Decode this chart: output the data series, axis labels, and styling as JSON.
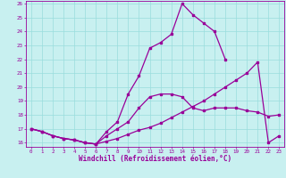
{
  "xlabel": "Windchill (Refroidissement éolien,°C)",
  "background_color": "#c8f0f0",
  "line_color": "#990099",
  "grid_color": "#99dddd",
  "x_hours": [
    0,
    1,
    2,
    3,
    4,
    5,
    6,
    7,
    8,
    9,
    10,
    11,
    12,
    13,
    14,
    15,
    16,
    17,
    18,
    19,
    20,
    21,
    22,
    23
  ],
  "line1": [
    17.0,
    16.8,
    16.5,
    16.3,
    16.2,
    16.0,
    15.9,
    16.8,
    17.5,
    19.5,
    20.8,
    22.8,
    23.2,
    23.8,
    26.0,
    25.2,
    24.6,
    24.0,
    22.0,
    null,
    null,
    null,
    null,
    null
  ],
  "line2": [
    17.0,
    16.8,
    16.5,
    16.3,
    16.2,
    16.0,
    15.9,
    16.5,
    17.0,
    17.5,
    18.5,
    19.3,
    19.5,
    19.5,
    19.3,
    18.5,
    18.3,
    18.5,
    18.5,
    18.5,
    18.3,
    18.2,
    17.9,
    18.0
  ],
  "line3": [
    17.0,
    16.8,
    16.5,
    16.3,
    16.2,
    16.0,
    15.9,
    16.1,
    16.3,
    16.6,
    16.9,
    17.1,
    17.4,
    17.8,
    18.2,
    18.6,
    19.0,
    19.5,
    20.0,
    20.5,
    21.0,
    21.8,
    16.0,
    16.5
  ],
  "ylim": [
    16.0,
    26.0
  ],
  "xlim": [
    -0.5,
    23.5
  ],
  "yticks": [
    16,
    17,
    18,
    19,
    20,
    21,
    22,
    23,
    24,
    25,
    26
  ],
  "xticks": [
    0,
    1,
    2,
    3,
    4,
    5,
    6,
    7,
    8,
    9,
    10,
    11,
    12,
    13,
    14,
    15,
    16,
    17,
    18,
    19,
    20,
    21,
    22,
    23
  ]
}
